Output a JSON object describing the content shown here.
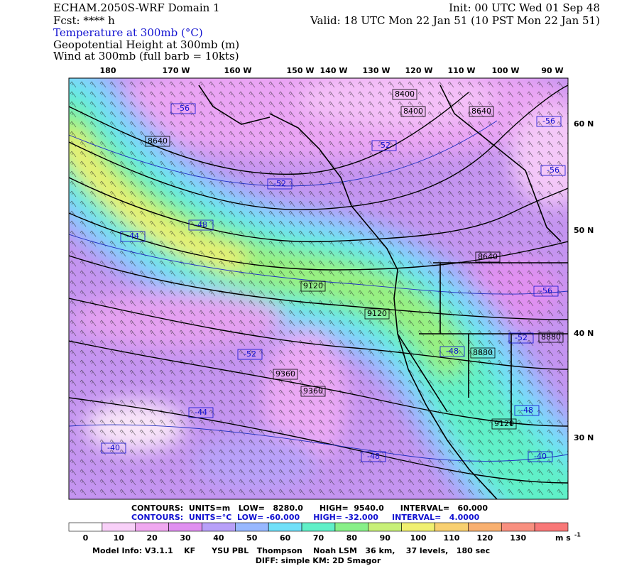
{
  "header": {
    "title": "ECHAM.2050S-WRF Domain 1",
    "init": "Init: 00 UTC Wed 01 Sep 48",
    "fcst": "Fcst: **** h",
    "valid": "Valid: 18 UTC Mon 22 Jan 51 (10 PST Mon 22 Jan 51)",
    "fields": [
      "Temperature at 300mb (°C)",
      "Geopotential Height at 300mb (m)",
      "Wind at 300mb (full barb = 10kts)"
    ]
  },
  "map": {
    "lon_labels": [
      "180",
      "170 W",
      "160 W",
      "150 W",
      "140 W",
      "130 W",
      "120 W",
      "110 W",
      "100 W",
      "90 W"
    ],
    "lat_labels": [
      "60 N",
      "50 N",
      "40 N",
      "30 N"
    ],
    "height_labels": [
      "8400",
      "8400",
      "8640",
      "8640",
      "9120",
      "9120",
      "8640",
      "8880",
      "8880",
      "9360",
      "9360",
      "9120"
    ],
    "temperature_labels": [
      "-56",
      "-52",
      "-52",
      "-48",
      "-44",
      "-56",
      "-56",
      "-56",
      "-52",
      "-48",
      "-52",
      "-44",
      "-48",
      "-40",
      "-48",
      "-40"
    ]
  },
  "footer": {
    "height_contours": "CONTOURS:  UNITS=m   LOW=   8280.0      HIGH=  9540.0      INTERVAL=   60.000",
    "temp_contours": "CONTOURS:  UNITS=°C  LOW= -60.000     HIGH= -32.000     INTERVAL=   4.0000",
    "colorbar": {
      "labels": [
        0,
        10,
        20,
        30,
        40,
        50,
        60,
        70,
        80,
        90,
        100,
        110,
        120,
        130
      ],
      "unit": "m s",
      "unit_exp": "-1",
      "colors": [
        "#ffffff",
        "#f8d0f8",
        "#f0a8f0",
        "#e090f0",
        "#b8a0f8",
        "#98b8ff",
        "#70e0f8",
        "#60f0c8",
        "#88f088",
        "#c8f078",
        "#f0f070",
        "#f8d070",
        "#f8b070",
        "#f89080",
        "#f87878"
      ]
    },
    "model_info": "Model Info: V3.1.1    KF      YSU PBL   Thompson    Noah LSM   36 km,    37 levels,   180 sec",
    "diff": "DIFF: simple KM: 2D Smagor"
  }
}
